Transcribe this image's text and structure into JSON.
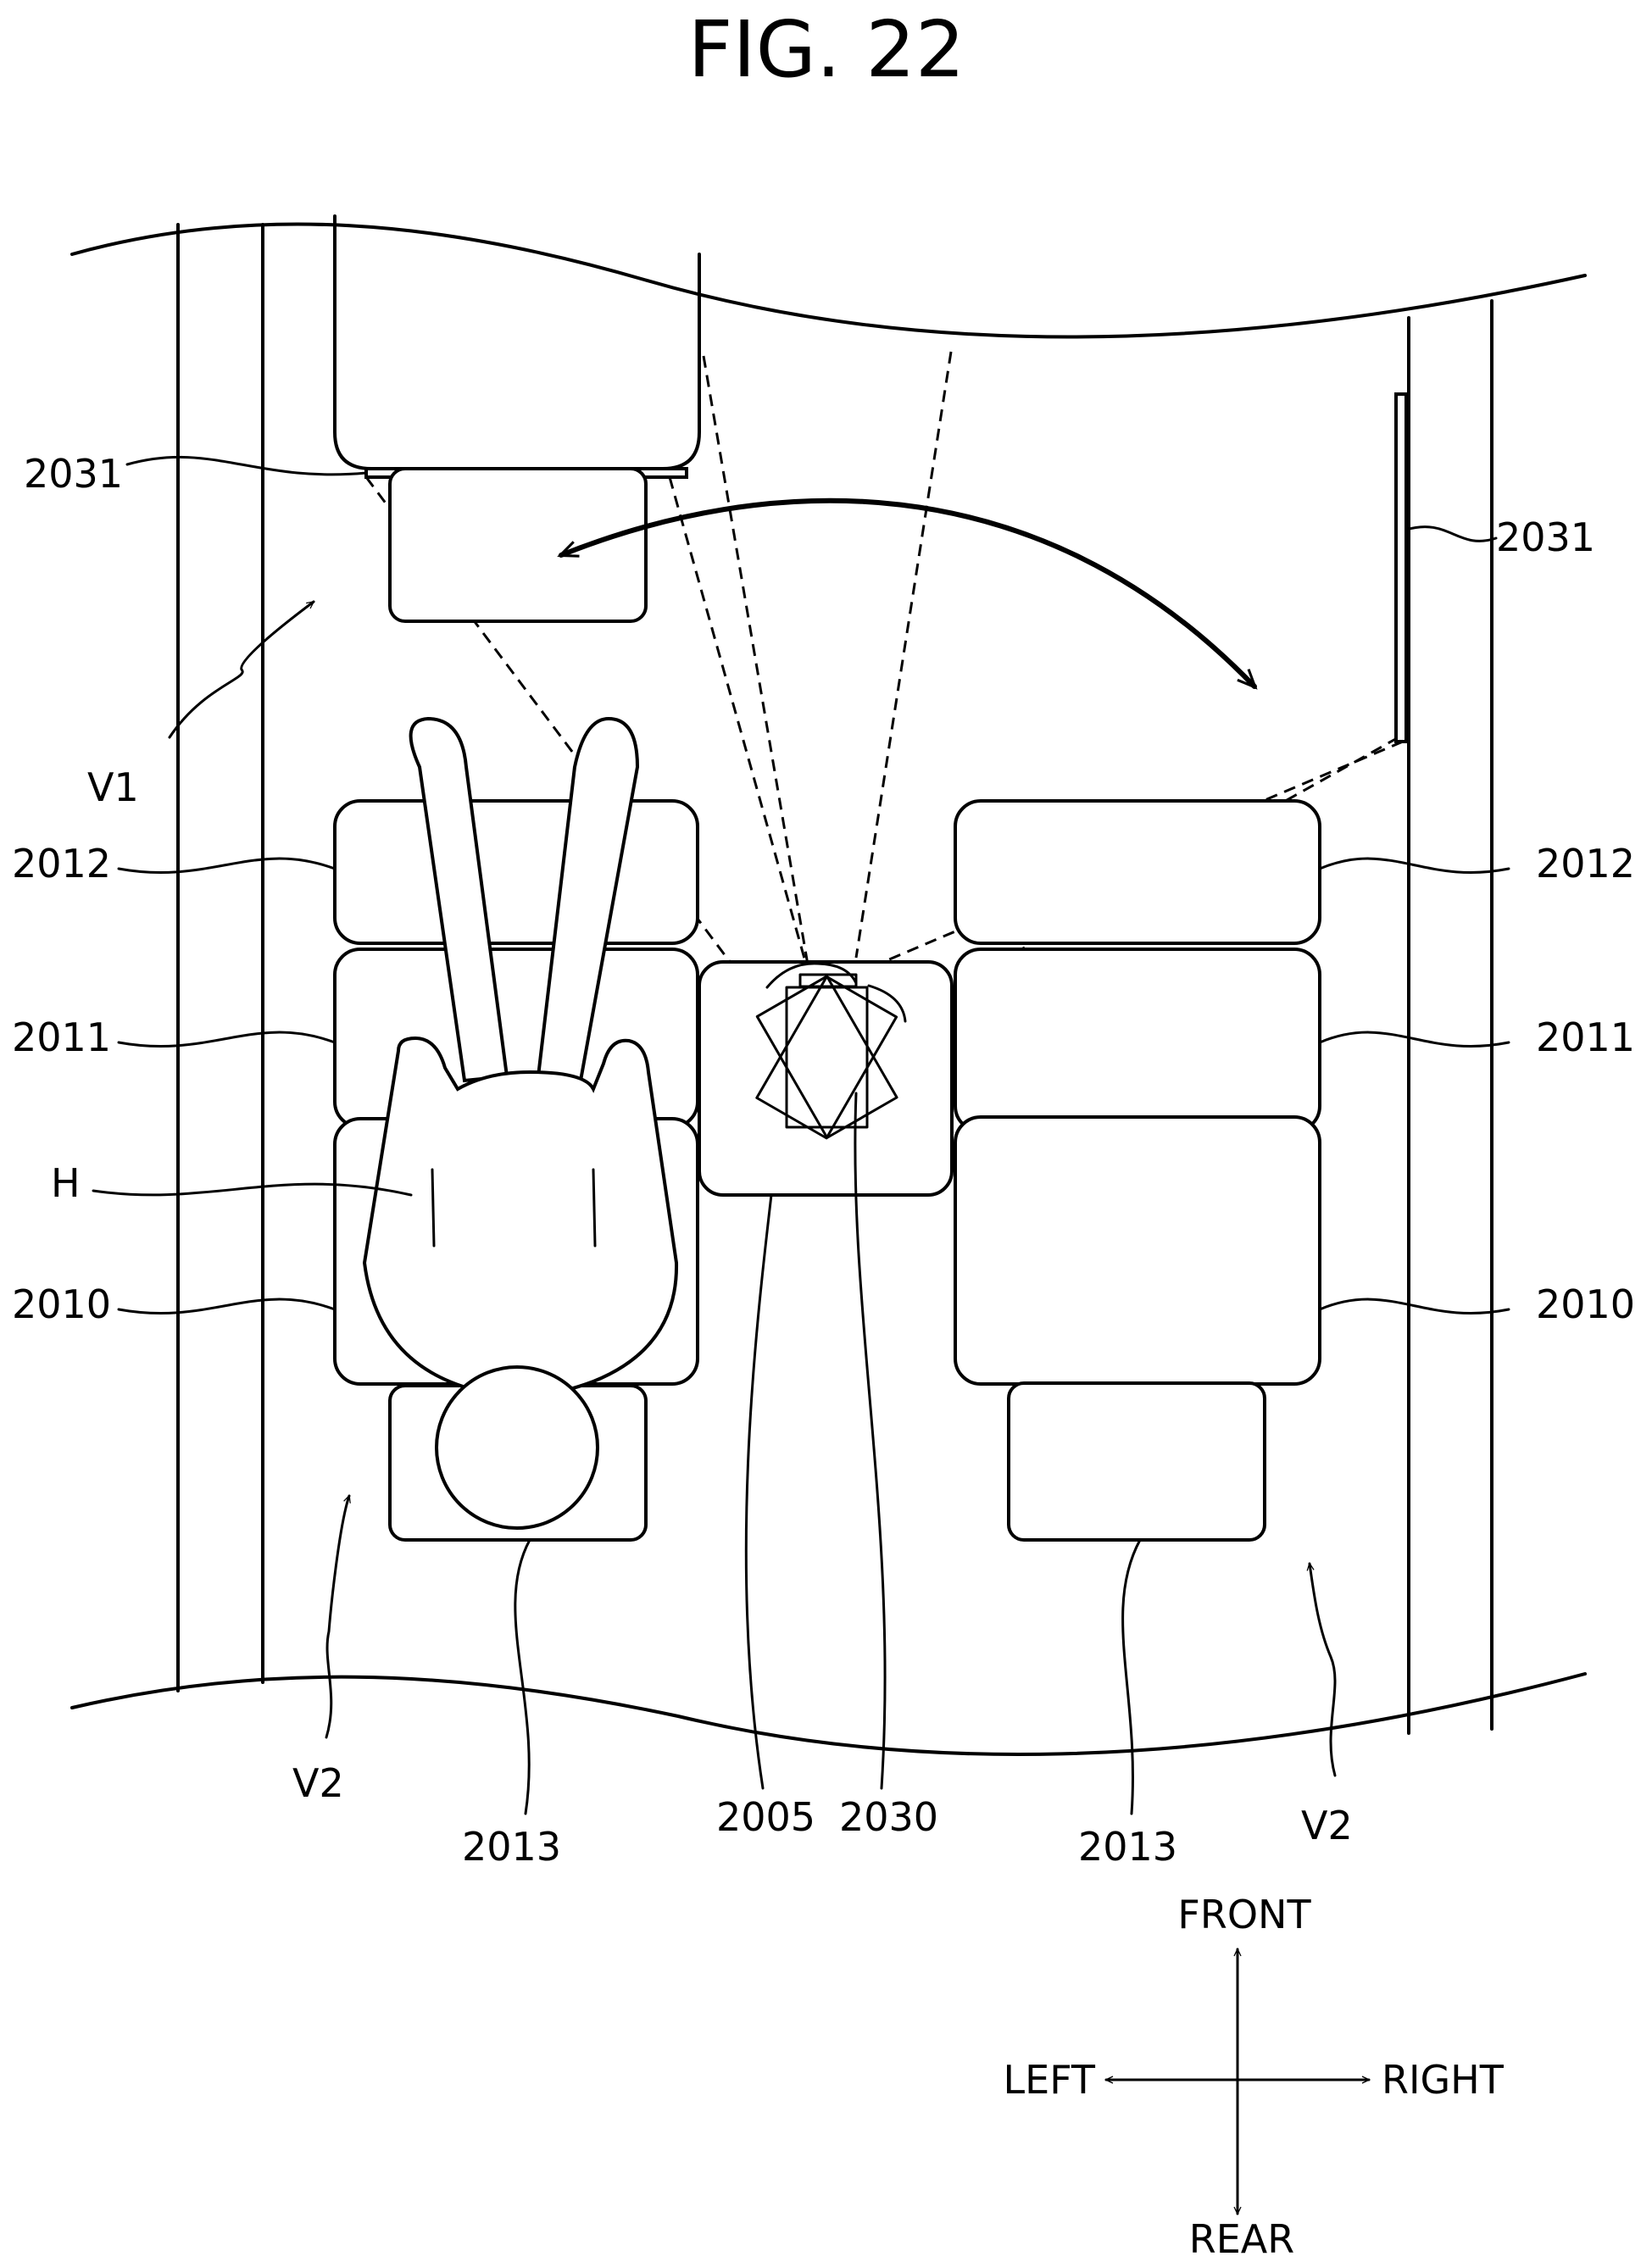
{
  "figure": {
    "title": "FIG. 22"
  },
  "labels": {
    "cam_left": "2031",
    "cam_right": "2031",
    "v1": "V1",
    "v2_left": "V2",
    "v2_right": "V2",
    "headrest_left": "2012",
    "headrest_right": "2012",
    "backrest_left": "2011",
    "backrest_right": "2011",
    "cushion_left": "2010",
    "cushion_right": "2010",
    "occupant": "H",
    "ottoman_left": "2013",
    "ottoman_right": "2013",
    "console": "2005",
    "display": "2030"
  },
  "compass": {
    "front": "FRONT",
    "rear": "REAR",
    "left": "LEFT",
    "right": "RIGHT"
  },
  "icons": [
    "direction-arrows-icon",
    "rotation-arrow-icon"
  ]
}
